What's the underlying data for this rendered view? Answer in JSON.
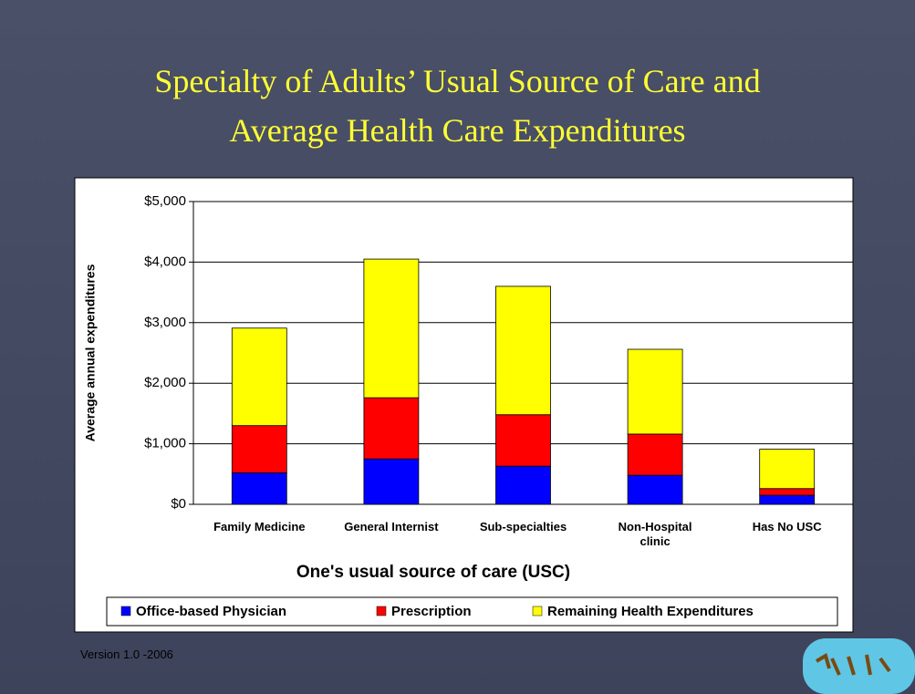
{
  "title": [
    "Specialty of Adults’ Usual Source of Care and",
    "Average Health Care Expenditures"
  ],
  "footer": "Version 1.0 -2006",
  "chart_data": {
    "type": "stacked_bar",
    "xlabel": "One's usual source of care (USC)",
    "ylabel": "Average annual expenditures",
    "categories": [
      "Family Medicine",
      "General Internist",
      "Sub-specialties",
      "Non-Hospital clinic",
      "Has No USC"
    ],
    "series": [
      {
        "name": "Office-based Physician",
        "color": "#0000ff",
        "values": [
          520,
          750,
          630,
          480,
          150
        ]
      },
      {
        "name": "Prescription",
        "color": "#ff0000",
        "values": [
          780,
          1010,
          850,
          680,
          110
        ]
      },
      {
        "name": "Remaining Health Expenditures",
        "color": "#ffff00",
        "values": [
          1610,
          2290,
          2120,
          1400,
          650
        ]
      }
    ],
    "ylim": [
      0,
      5000
    ],
    "yticks": [
      {
        "value": 0,
        "label": "$0"
      },
      {
        "value": 1000,
        "label": "$1,000"
      },
      {
        "value": 2000,
        "label": "$2,000"
      },
      {
        "value": 3000,
        "label": "$3,000"
      },
      {
        "value": 4000,
        "label": "$4,000"
      },
      {
        "value": 5000,
        "label": "$5,000"
      }
    ],
    "grid": true,
    "legend": "bottom"
  }
}
